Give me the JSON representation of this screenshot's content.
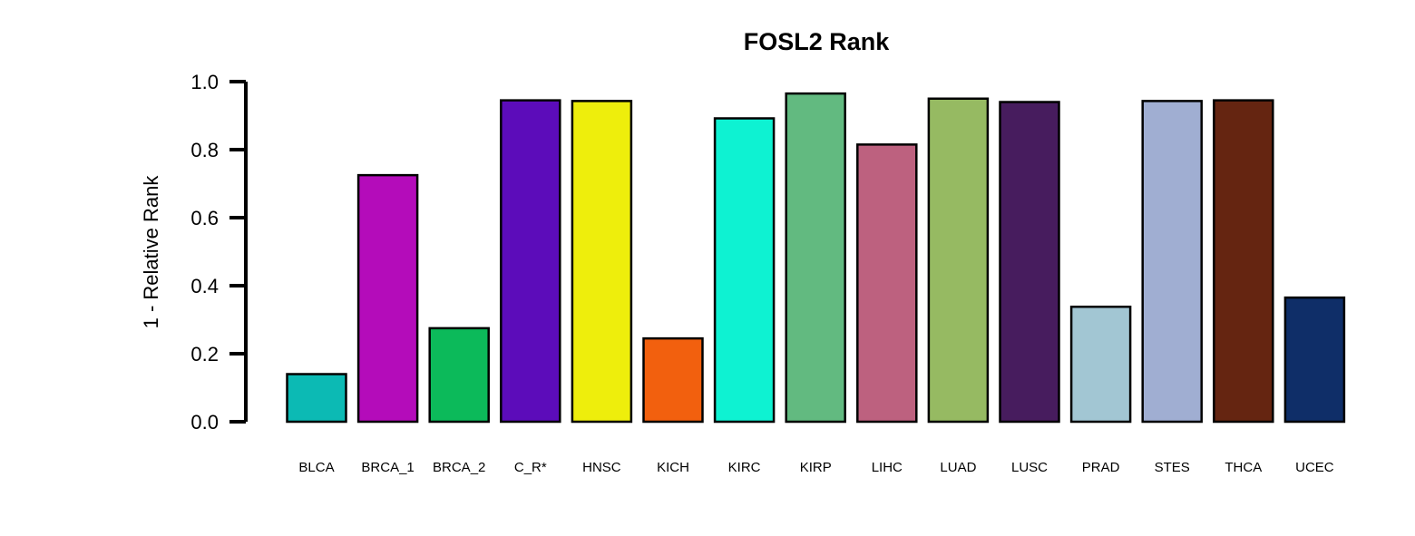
{
  "chart_data": {
    "type": "bar",
    "title": "FOSL2 Rank",
    "xlabel": "",
    "ylabel": "1 - Relative Rank",
    "ylim": [
      0,
      1.0
    ],
    "yticks": [
      "0.0",
      "0.2",
      "0.4",
      "0.6",
      "0.8",
      "1.0"
    ],
    "grid": false,
    "legend": "none",
    "categories": [
      "BLCA",
      "BRCA_1",
      "BRCA_2",
      "C_R*",
      "HNSC",
      "KICH",
      "KIRC",
      "KIRP",
      "LIHC",
      "LUAD",
      "LUSC",
      "PRAD",
      "STES",
      "THCA",
      "UCEC"
    ],
    "values": [
      0.14,
      0.725,
      0.275,
      0.945,
      0.943,
      0.245,
      0.892,
      0.965,
      0.815,
      0.95,
      0.94,
      0.338,
      0.943,
      0.945,
      0.365
    ],
    "colors": [
      "#0CBAB4",
      "#B40CBA",
      "#0CBA5A",
      "#5C0CBA",
      "#EEEE0C",
      "#F2600E",
      "#0EF2D2",
      "#62BA80",
      "#BD617F",
      "#96BA62",
      "#471C5E",
      "#A2C6D3",
      "#A0AED2",
      "#652511",
      "#0F2E68"
    ]
  }
}
